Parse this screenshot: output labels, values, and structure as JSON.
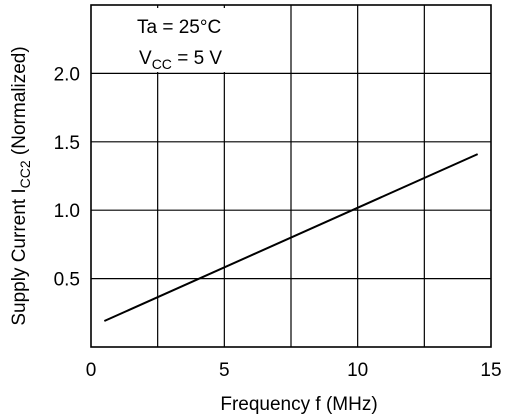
{
  "chart_data": {
    "type": "line",
    "xlabel": "Frequency  f  (MHz)",
    "ylabel_prefix": "Supply Current  I",
    "ylabel_sub": "CC2",
    "ylabel_suffix": "  (Normalized)",
    "xlim": [
      0,
      15
    ],
    "ylim": [
      0,
      2.5
    ],
    "x_ticks": [
      {
        "value": 0,
        "label": "0"
      },
      {
        "value": 5,
        "label": "5"
      },
      {
        "value": 10,
        "label": "10"
      },
      {
        "value": 15,
        "label": "15"
      }
    ],
    "y_ticks": [
      {
        "value": 0.5,
        "label": "0.5"
      },
      {
        "value": 1.0,
        "label": "1.0"
      },
      {
        "value": 1.5,
        "label": "1.5"
      },
      {
        "value": 2.0,
        "label": "2.0"
      }
    ],
    "x_grid": [
      2.5,
      5,
      7.5,
      10,
      12.5
    ],
    "y_grid": [
      0.5,
      1.0,
      1.5,
      2.0
    ],
    "grid": true,
    "series": [
      {
        "x": [
          0.5,
          14.5
        ],
        "y": [
          0.19,
          1.41
        ]
      }
    ],
    "annotations": {
      "ta_line": "Ta = 25°C",
      "vcc_prefix": "V",
      "vcc_sub": "CC",
      "vcc_suffix": " = 5 V"
    }
  }
}
